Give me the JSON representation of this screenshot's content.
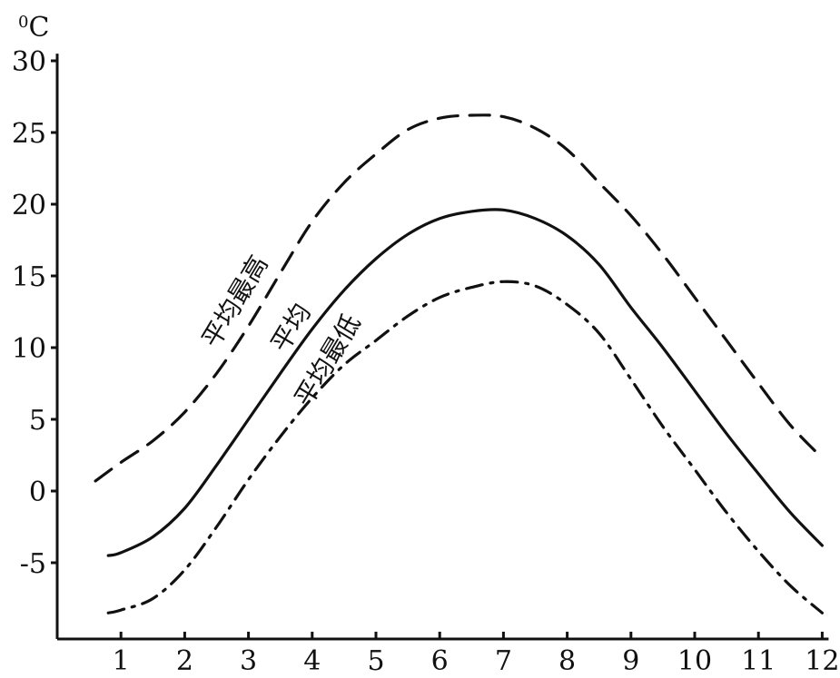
{
  "chart_data": {
    "type": "line",
    "unit_label": {
      "superscript": "0",
      "text": "C"
    },
    "x": [
      0.6,
      0.8,
      1.0,
      1.3,
      1.7,
      2.0,
      2.5,
      3.0,
      3.5,
      4.0,
      4.5,
      5.0,
      5.5,
      6.0,
      6.5,
      7.0,
      7.5,
      8.0,
      8.5,
      9.0,
      9.5,
      10.0,
      10.5,
      11.0,
      11.5,
      12.0
    ],
    "xticks": [
      "1",
      "2",
      "3",
      "4",
      "5",
      "6",
      "7",
      "8",
      "9",
      "10",
      "11",
      "12"
    ],
    "xtick_values": [
      1,
      2,
      3,
      4,
      5,
      6,
      7,
      8,
      9,
      10,
      11,
      12
    ],
    "yticks": [
      "30",
      "25",
      "20",
      "15",
      "10",
      "5",
      "0",
      "-5"
    ],
    "ytick_values": [
      30,
      25,
      20,
      15,
      10,
      5,
      0,
      -5
    ],
    "xlim": [
      0,
      12.1
    ],
    "ylim": [
      -10.5,
      30.5
    ],
    "series": [
      {
        "name": "平均最高",
        "style": "dashed",
        "x": [
          0.6,
          1.0,
          1.5,
          2.0,
          2.5,
          3.0,
          3.5,
          4.0,
          4.5,
          5.0,
          5.5,
          6.0,
          6.5,
          7.0,
          7.5,
          8.0,
          8.5,
          9.0,
          9.5,
          10.0,
          10.5,
          11.0,
          11.5,
          12.0
        ],
        "values": [
          0.7,
          2.0,
          3.5,
          5.5,
          8.2,
          11.5,
          15.2,
          18.8,
          21.5,
          23.5,
          25.2,
          26.0,
          26.2,
          26.1,
          25.3,
          23.8,
          21.5,
          19.2,
          16.5,
          13.5,
          10.5,
          7.5,
          4.6,
          2.3
        ]
      },
      {
        "name": "平均",
        "style": "solid",
        "x": [
          0.8,
          1.0,
          1.5,
          2.0,
          2.5,
          3.0,
          3.5,
          4.0,
          4.5,
          5.0,
          5.5,
          6.0,
          6.5,
          7.0,
          7.5,
          8.0,
          8.5,
          9.0,
          9.5,
          10.0,
          10.5,
          11.0,
          11.5,
          12.0
        ],
        "values": [
          -4.5,
          -4.3,
          -3.2,
          -1.2,
          1.8,
          5.0,
          8.2,
          11.3,
          14.0,
          16.2,
          17.9,
          19.0,
          19.5,
          19.6,
          19.0,
          17.8,
          15.8,
          12.8,
          10.0,
          7.0,
          4.0,
          1.2,
          -1.5,
          -3.8
        ]
      },
      {
        "name": "平均最低",
        "style": "dash-dot",
        "x": [
          0.8,
          1.0,
          1.5,
          2.0,
          2.5,
          3.0,
          3.5,
          4.0,
          4.5,
          5.0,
          5.5,
          6.0,
          6.5,
          7.0,
          7.5,
          8.0,
          8.5,
          9.0,
          9.5,
          10.0,
          10.5,
          11.0,
          11.5,
          12.0
        ],
        "values": [
          -8.5,
          -8.3,
          -7.5,
          -5.5,
          -2.5,
          0.8,
          3.8,
          6.5,
          8.8,
          10.5,
          12.2,
          13.5,
          14.2,
          14.6,
          14.3,
          13.0,
          11.0,
          7.8,
          4.5,
          1.5,
          -1.5,
          -4.2,
          -6.6,
          -8.5
        ]
      }
    ]
  }
}
